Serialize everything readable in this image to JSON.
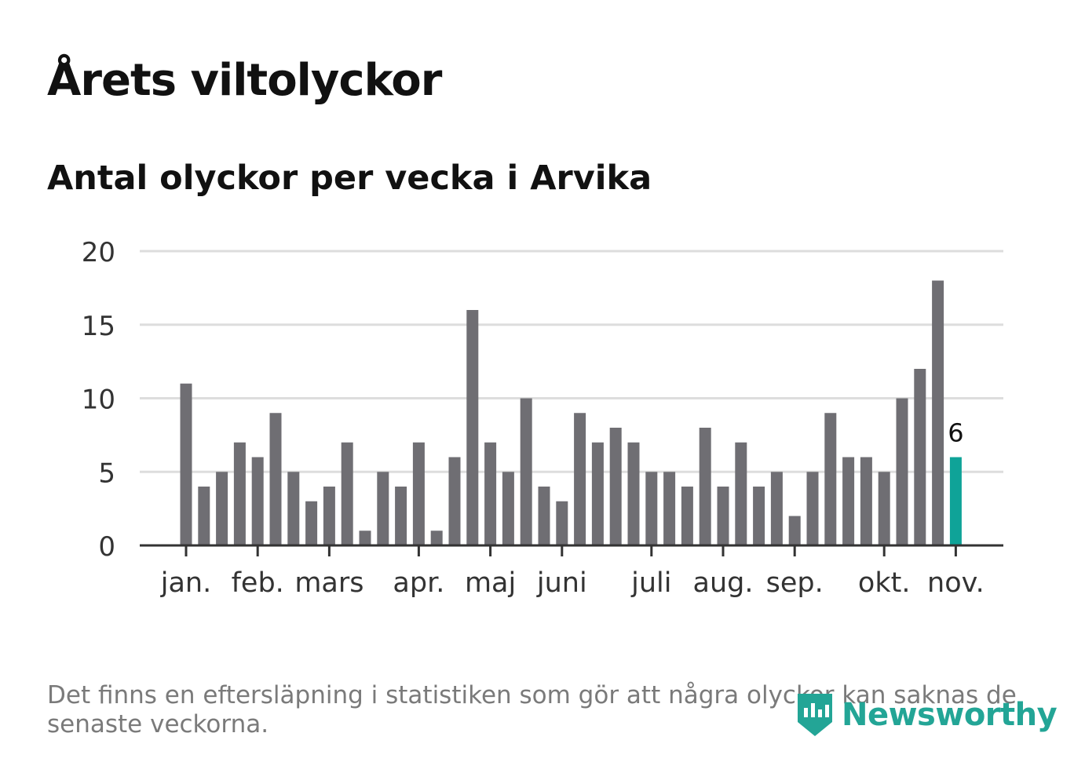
{
  "header": {
    "title": "Årets viltolyckor",
    "subtitle": "Antal olyckor per vecka i Arvika"
  },
  "footnote": "Det finns en eftersläpning i statistiken som gör att några olyckor kan saknas de senaste veckorna.",
  "brand": {
    "name": "Newsworthy",
    "color": "#23a596"
  },
  "colors": {
    "bar": "#6f6e73",
    "highlight": "#0fa398",
    "grid": "#dddddd",
    "axis": "#333333"
  },
  "chart_data": {
    "type": "bar",
    "title": "Antal olyckor per vecka i Arvika",
    "xlabel": "",
    "ylabel": "",
    "ylim": [
      0,
      20
    ],
    "yticks": [
      0,
      5,
      10,
      15,
      20
    ],
    "grid": true,
    "values": [
      11,
      4,
      5,
      7,
      6,
      9,
      5,
      3,
      4,
      7,
      1,
      5,
      4,
      7,
      1,
      6,
      16,
      7,
      5,
      10,
      4,
      3,
      9,
      7,
      8,
      7,
      5,
      5,
      4,
      8,
      4,
      7,
      4,
      5,
      2,
      5,
      9,
      6,
      6,
      5,
      10,
      12,
      18,
      6
    ],
    "highlight_index": 43,
    "highlight_label": "6",
    "month_ticks": [
      {
        "label": "jan.",
        "bar": 0
      },
      {
        "label": "feb.",
        "bar": 4
      },
      {
        "label": "mars",
        "bar": 8
      },
      {
        "label": "apr.",
        "bar": 13
      },
      {
        "label": "maj",
        "bar": 17
      },
      {
        "label": "juni",
        "bar": 21
      },
      {
        "label": "juli",
        "bar": 26
      },
      {
        "label": "aug.",
        "bar": 30
      },
      {
        "label": "sep.",
        "bar": 34
      },
      {
        "label": "okt.",
        "bar": 39
      },
      {
        "label": "nov.",
        "bar": 43
      }
    ]
  }
}
